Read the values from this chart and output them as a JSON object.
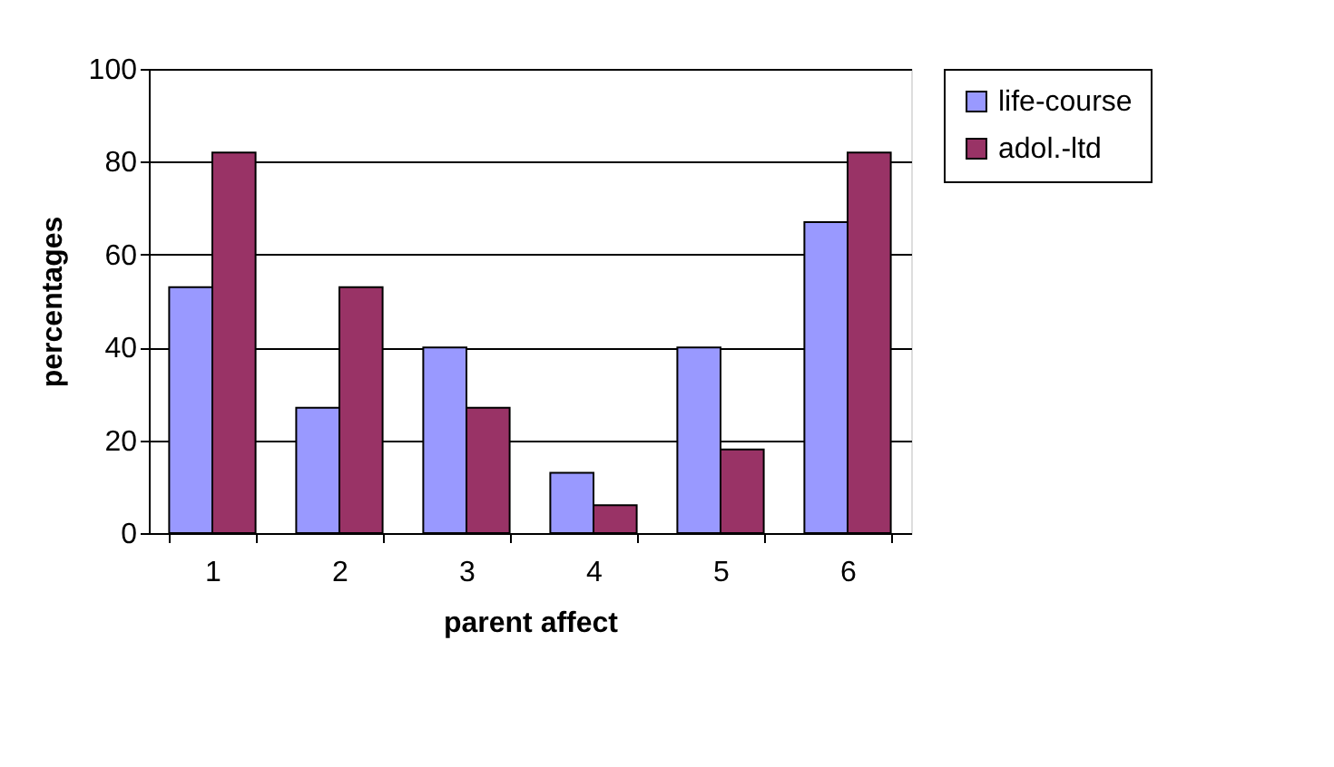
{
  "chart_data": {
    "type": "bar",
    "xlabel": "parent affect",
    "ylabel": "percentages",
    "categories": [
      "1",
      "2",
      "3",
      "4",
      "5",
      "6"
    ],
    "series": [
      {
        "name": "life-course",
        "color": "#9999ff",
        "values": [
          53,
          27,
          40,
          13,
          40,
          67
        ]
      },
      {
        "name": "adol.-ltd",
        "color": "#993366",
        "values": [
          82,
          53,
          27,
          6,
          18,
          82
        ]
      }
    ],
    "ylim": [
      0,
      100
    ],
    "yticks": [
      0,
      20,
      40,
      60,
      80,
      100
    ],
    "grid": "y",
    "legend": "right"
  }
}
